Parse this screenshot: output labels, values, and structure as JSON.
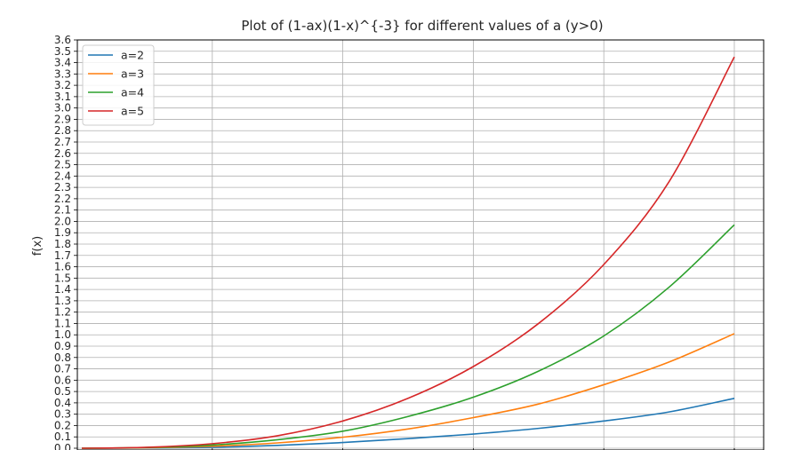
{
  "chart_data": {
    "type": "line",
    "title": "Plot of (1-ax)(1-x)^{-3} for different values of a (y>0)",
    "xlabel": "",
    "ylabel": "f(x)",
    "ylim": [
      0.0,
      3.6
    ],
    "yticks": [
      "0.0",
      "0.1",
      "0.2",
      "0.3",
      "0.4",
      "0.5",
      "0.6",
      "0.7",
      "0.8",
      "0.9",
      "1.0",
      "1.1",
      "1.2",
      "1.3",
      "1.4",
      "1.5",
      "1.6",
      "1.7",
      "1.8",
      "1.9",
      "2.0",
      "2.1",
      "2.2",
      "2.3",
      "2.4",
      "2.5",
      "2.6",
      "2.7",
      "2.8",
      "2.9",
      "3.0",
      "3.1",
      "3.2",
      "3.3",
      "3.4",
      "3.5",
      "3.6"
    ],
    "grid": true,
    "legend_position": "top-left",
    "x": [
      0.0,
      0.1,
      0.2,
      0.3,
      0.4,
      0.5,
      0.6,
      0.7,
      0.8,
      0.9,
      1.0
    ],
    "series": [
      {
        "name": "a=2",
        "color": "#1f77b4",
        "values": [
          0.0,
          0.002,
          0.008,
          0.025,
          0.05,
          0.085,
          0.125,
          0.175,
          0.24,
          0.32,
          0.44
        ]
      },
      {
        "name": "a=3",
        "color": "#ff7f0e",
        "values": [
          0.0,
          0.004,
          0.018,
          0.047,
          0.097,
          0.17,
          0.27,
          0.39,
          0.56,
          0.76,
          1.01
        ]
      },
      {
        "name": "a=4",
        "color": "#2ca02c",
        "values": [
          0.0,
          0.006,
          0.028,
          0.075,
          0.15,
          0.28,
          0.45,
          0.68,
          0.99,
          1.42,
          1.97
        ]
      },
      {
        "name": "a=5",
        "color": "#d62728",
        "values": [
          0.0,
          0.008,
          0.04,
          0.11,
          0.24,
          0.44,
          0.72,
          1.1,
          1.62,
          2.35,
          3.45
        ]
      }
    ]
  }
}
